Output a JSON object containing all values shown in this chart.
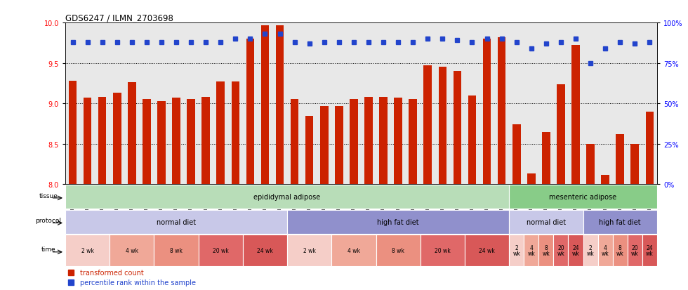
{
  "title": "GDS6247 / ILMN_2703698",
  "samples": [
    "GSM971546",
    "GSM971547",
    "GSM971548",
    "GSM971549",
    "GSM971550",
    "GSM971551",
    "GSM971552",
    "GSM971553",
    "GSM971554",
    "GSM971555",
    "GSM971556",
    "GSM971557",
    "GSM971558",
    "GSM971559",
    "GSM971560",
    "GSM971561",
    "GSM971562",
    "GSM971563",
    "GSM971564",
    "GSM971565",
    "GSM971566",
    "GSM971567",
    "GSM971568",
    "GSM971569",
    "GSM971570",
    "GSM971571",
    "GSM971572",
    "GSM971573",
    "GSM971574",
    "GSM971575",
    "GSM971576",
    "GSM971577",
    "GSM971578",
    "GSM971579",
    "GSM971580",
    "GSM971581",
    "GSM971582",
    "GSM971583",
    "GSM971584",
    "GSM971585"
  ],
  "bar_values": [
    9.28,
    9.07,
    9.08,
    9.13,
    9.26,
    9.05,
    9.03,
    9.07,
    9.05,
    9.08,
    9.27,
    9.27,
    9.8,
    9.97,
    9.97,
    9.05,
    8.85,
    8.97,
    8.97,
    9.05,
    9.08,
    9.08,
    9.07,
    9.05,
    9.47,
    9.45,
    9.4,
    9.1,
    9.8,
    9.82,
    8.74,
    8.13,
    8.65,
    9.24,
    9.72,
    8.5,
    8.12,
    8.62,
    8.5,
    8.9
  ],
  "dot_values": [
    88,
    88,
    88,
    88,
    88,
    88,
    88,
    88,
    88,
    88,
    88,
    90,
    90,
    93,
    93,
    88,
    87,
    88,
    88,
    88,
    88,
    88,
    88,
    88,
    90,
    90,
    89,
    88,
    90,
    90,
    88,
    84,
    87,
    88,
    90,
    75,
    84,
    88,
    87,
    88
  ],
  "ylim_left": [
    8.0,
    10.0
  ],
  "ylim_right": [
    0,
    100
  ],
  "yticks_left": [
    8.0,
    8.5,
    9.0,
    9.5,
    10.0
  ],
  "yticks_right": [
    0,
    25,
    50,
    75,
    100
  ],
  "bar_color": "#cc2200",
  "dot_color": "#2244cc",
  "bg_color": "#e8e8e8",
  "tissue_groups": [
    {
      "label": "epididymal adipose",
      "start": 0,
      "end": 30,
      "color": "#b8ddb8"
    },
    {
      "label": "mesenteric adipose",
      "start": 30,
      "end": 40,
      "color": "#88cc88"
    }
  ],
  "protocol_groups": [
    {
      "label": "normal diet",
      "start": 0,
      "end": 15,
      "color": "#c8c8e8"
    },
    {
      "label": "high fat diet",
      "start": 15,
      "end": 30,
      "color": "#9090cc"
    },
    {
      "label": "normal diet",
      "start": 30,
      "end": 35,
      "color": "#c8c8e8"
    },
    {
      "label": "high fat diet",
      "start": 35,
      "end": 40,
      "color": "#9090cc"
    }
  ],
  "time_groups": [
    {
      "label": "2 wk",
      "start": 0,
      "end": 3,
      "color": "#f5cec8"
    },
    {
      "label": "4 wk",
      "start": 3,
      "end": 6,
      "color": "#f0a898"
    },
    {
      "label": "8 wk",
      "start": 6,
      "end": 9,
      "color": "#eb9080"
    },
    {
      "label": "20 wk",
      "start": 9,
      "end": 12,
      "color": "#e06868"
    },
    {
      "label": "24 wk",
      "start": 12,
      "end": 15,
      "color": "#d85858"
    },
    {
      "label": "2 wk",
      "start": 15,
      "end": 18,
      "color": "#f5cec8"
    },
    {
      "label": "4 wk",
      "start": 18,
      "end": 21,
      "color": "#f0a898"
    },
    {
      "label": "8 wk",
      "start": 21,
      "end": 24,
      "color": "#eb9080"
    },
    {
      "label": "20 wk",
      "start": 24,
      "end": 27,
      "color": "#e06868"
    },
    {
      "label": "24 wk",
      "start": 27,
      "end": 30,
      "color": "#d85858"
    },
    {
      "label": "2\nwk",
      "start": 30,
      "end": 31,
      "color": "#f5cec8"
    },
    {
      "label": "4\nwk",
      "start": 31,
      "end": 32,
      "color": "#f0a898"
    },
    {
      "label": "8\nwk",
      "start": 32,
      "end": 33,
      "color": "#eb9080"
    },
    {
      "label": "20\nwk",
      "start": 33,
      "end": 34,
      "color": "#e06868"
    },
    {
      "label": "24\nwk",
      "start": 34,
      "end": 35,
      "color": "#d85858"
    },
    {
      "label": "2\nwk",
      "start": 35,
      "end": 36,
      "color": "#f5cec8"
    },
    {
      "label": "4\nwk",
      "start": 36,
      "end": 37,
      "color": "#f0a898"
    },
    {
      "label": "8\nwk",
      "start": 37,
      "end": 38,
      "color": "#eb9080"
    },
    {
      "label": "20\nwk",
      "start": 38,
      "end": 39,
      "color": "#e06868"
    },
    {
      "label": "24\nwk",
      "start": 39,
      "end": 40,
      "color": "#d85858"
    }
  ],
  "legend_items": [
    {
      "label": "transformed count",
      "color": "#cc2200"
    },
    {
      "label": "percentile rank within the sample",
      "color": "#2244cc"
    }
  ]
}
